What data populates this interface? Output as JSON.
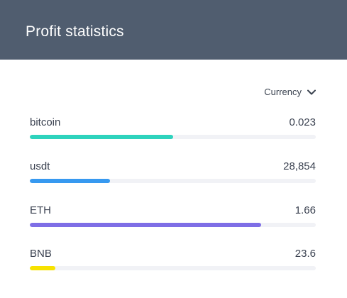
{
  "header": {
    "title": "Profit statistics",
    "background": "#505d6f"
  },
  "currency": {
    "label": "Currency",
    "icon": "chevron-down-icon"
  },
  "rows": [
    {
      "label": "bitcoin",
      "value": "0.023",
      "progress": 0.5,
      "color": "#2ed3bd"
    },
    {
      "label": "usdt",
      "value": "28,854",
      "progress": 0.28,
      "color": "#3799f0"
    },
    {
      "label": "ETH",
      "value": "1.66",
      "progress": 0.81,
      "color": "#7e6ee6"
    },
    {
      "label": "BNB",
      "value": "23.6",
      "progress": 0.09,
      "color": "#f7e200"
    }
  ]
}
